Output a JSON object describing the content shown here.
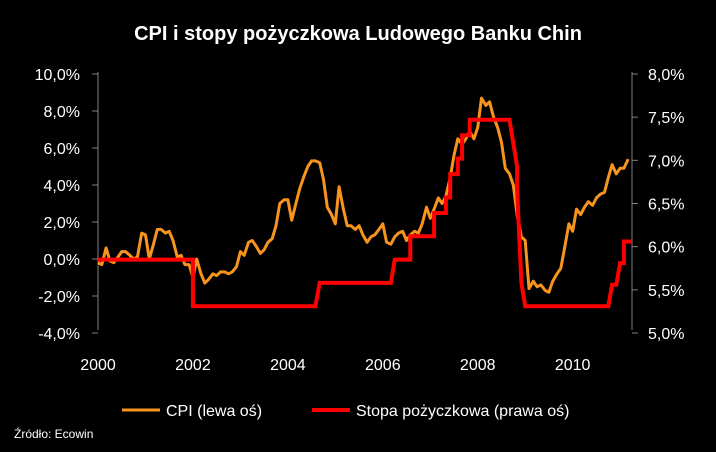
{
  "chart_data": {
    "type": "line",
    "title": "CPI i stopy pożyczkowa Ludowego Banku Chin",
    "source": "Źródło: Ecowin",
    "x_ticks": [
      "2000",
      "2002",
      "2004",
      "2006",
      "2008",
      "2010"
    ],
    "xlim": [
      2000,
      2011.25
    ],
    "y_left": {
      "ticks": [
        "-4,0%",
        "-2,0%",
        "0,0%",
        "2,0%",
        "4,0%",
        "6,0%",
        "8,0%",
        "10,0%"
      ],
      "ylim": [
        -4,
        10
      ]
    },
    "y_right": {
      "ticks": [
        "5,0%",
        "5,5%",
        "6,0%",
        "6,5%",
        "7,0%",
        "7,5%",
        "8,0%"
      ],
      "ylim": [
        5,
        8
      ]
    },
    "legend_position": "bottom",
    "series": [
      {
        "name": "CPI (lewa oś)",
        "axis": "left",
        "color": "#F7941D",
        "points": [
          [
            2000.0,
            -0.2
          ],
          [
            2000.08,
            -0.3
          ],
          [
            2000.17,
            0.6
          ],
          [
            2000.25,
            -0.1
          ],
          [
            2000.33,
            -0.2
          ],
          [
            2000.42,
            0.1
          ],
          [
            2000.5,
            0.4
          ],
          [
            2000.58,
            0.4
          ],
          [
            2000.67,
            0.2
          ],
          [
            2000.75,
            0.0
          ],
          [
            2000.83,
            0.1
          ],
          [
            2000.92,
            1.4
          ],
          [
            2001.0,
            1.3
          ],
          [
            2001.08,
            0.0
          ],
          [
            2001.17,
            0.8
          ],
          [
            2001.25,
            1.6
          ],
          [
            2001.33,
            1.6
          ],
          [
            2001.42,
            1.4
          ],
          [
            2001.5,
            1.5
          ],
          [
            2001.58,
            1.0
          ],
          [
            2001.67,
            0.1
          ],
          [
            2001.75,
            0.2
          ],
          [
            2001.83,
            -0.3
          ],
          [
            2001.92,
            -0.3
          ],
          [
            2002.0,
            -1.0
          ],
          [
            2002.08,
            0.0
          ],
          [
            2002.17,
            -0.8
          ],
          [
            2002.25,
            -1.3
          ],
          [
            2002.33,
            -1.1
          ],
          [
            2002.42,
            -0.8
          ],
          [
            2002.5,
            -0.9
          ],
          [
            2002.58,
            -0.7
          ],
          [
            2002.67,
            -0.7
          ],
          [
            2002.75,
            -0.8
          ],
          [
            2002.83,
            -0.7
          ],
          [
            2002.92,
            -0.4
          ],
          [
            2003.0,
            0.4
          ],
          [
            2003.08,
            0.2
          ],
          [
            2003.17,
            0.9
          ],
          [
            2003.25,
            1.0
          ],
          [
            2003.33,
            0.7
          ],
          [
            2003.42,
            0.3
          ],
          [
            2003.5,
            0.5
          ],
          [
            2003.58,
            0.9
          ],
          [
            2003.67,
            1.1
          ],
          [
            2003.75,
            1.8
          ],
          [
            2003.83,
            3.0
          ],
          [
            2003.92,
            3.2
          ],
          [
            2004.0,
            3.2
          ],
          [
            2004.08,
            2.1
          ],
          [
            2004.17,
            3.0
          ],
          [
            2004.25,
            3.8
          ],
          [
            2004.33,
            4.4
          ],
          [
            2004.42,
            5.0
          ],
          [
            2004.5,
            5.3
          ],
          [
            2004.58,
            5.3
          ],
          [
            2004.67,
            5.2
          ],
          [
            2004.75,
            4.3
          ],
          [
            2004.83,
            2.8
          ],
          [
            2004.92,
            2.4
          ],
          [
            2005.0,
            1.9
          ],
          [
            2005.08,
            3.9
          ],
          [
            2005.17,
            2.7
          ],
          [
            2005.25,
            1.8
          ],
          [
            2005.33,
            1.8
          ],
          [
            2005.42,
            1.6
          ],
          [
            2005.5,
            1.8
          ],
          [
            2005.58,
            1.3
          ],
          [
            2005.67,
            0.9
          ],
          [
            2005.75,
            1.2
          ],
          [
            2005.83,
            1.3
          ],
          [
            2005.92,
            1.6
          ],
          [
            2006.0,
            1.9
          ],
          [
            2006.08,
            0.9
          ],
          [
            2006.17,
            0.8
          ],
          [
            2006.25,
            1.2
          ],
          [
            2006.33,
            1.4
          ],
          [
            2006.42,
            1.5
          ],
          [
            2006.5,
            1.0
          ],
          [
            2006.58,
            1.3
          ],
          [
            2006.67,
            1.5
          ],
          [
            2006.75,
            1.4
          ],
          [
            2006.83,
            1.9
          ],
          [
            2006.92,
            2.8
          ],
          [
            2007.0,
            2.2
          ],
          [
            2007.08,
            2.7
          ],
          [
            2007.17,
            3.3
          ],
          [
            2007.25,
            3.0
          ],
          [
            2007.33,
            3.4
          ],
          [
            2007.42,
            4.4
          ],
          [
            2007.5,
            5.6
          ],
          [
            2007.58,
            6.5
          ],
          [
            2007.67,
            6.2
          ],
          [
            2007.75,
            6.5
          ],
          [
            2007.83,
            6.9
          ],
          [
            2007.92,
            6.5
          ],
          [
            2008.0,
            7.1
          ],
          [
            2008.08,
            8.7
          ],
          [
            2008.17,
            8.3
          ],
          [
            2008.25,
            8.5
          ],
          [
            2008.33,
            7.7
          ],
          [
            2008.42,
            7.1
          ],
          [
            2008.5,
            6.3
          ],
          [
            2008.58,
            4.9
          ],
          [
            2008.67,
            4.6
          ],
          [
            2008.75,
            4.0
          ],
          [
            2008.83,
            2.4
          ],
          [
            2008.92,
            1.2
          ],
          [
            2009.0,
            1.0
          ],
          [
            2009.08,
            -1.6
          ],
          [
            2009.17,
            -1.2
          ],
          [
            2009.25,
            -1.5
          ],
          [
            2009.33,
            -1.4
          ],
          [
            2009.42,
            -1.7
          ],
          [
            2009.5,
            -1.8
          ],
          [
            2009.58,
            -1.2
          ],
          [
            2009.67,
            -0.8
          ],
          [
            2009.75,
            -0.5
          ],
          [
            2009.83,
            0.6
          ],
          [
            2009.92,
            1.9
          ],
          [
            2010.0,
            1.5
          ],
          [
            2010.08,
            2.7
          ],
          [
            2010.17,
            2.4
          ],
          [
            2010.25,
            2.8
          ],
          [
            2010.33,
            3.1
          ],
          [
            2010.42,
            2.9
          ],
          [
            2010.5,
            3.3
          ],
          [
            2010.58,
            3.5
          ],
          [
            2010.67,
            3.6
          ],
          [
            2010.75,
            4.4
          ],
          [
            2010.83,
            5.1
          ],
          [
            2010.92,
            4.6
          ],
          [
            2011.0,
            4.9
          ],
          [
            2011.08,
            4.9
          ],
          [
            2011.17,
            5.4
          ]
        ]
      },
      {
        "name": "Stopa pożyczkowa (prawa oś)",
        "axis": "right",
        "color": "#FF0000",
        "points": [
          [
            2000.0,
            5.85
          ],
          [
            2002.0,
            5.85
          ],
          [
            2002.0,
            5.31
          ],
          [
            2004.58,
            5.31
          ],
          [
            2004.67,
            5.58
          ],
          [
            2006.17,
            5.58
          ],
          [
            2006.25,
            5.85
          ],
          [
            2006.58,
            5.85
          ],
          [
            2006.58,
            6.12
          ],
          [
            2007.08,
            6.12
          ],
          [
            2007.08,
            6.39
          ],
          [
            2007.33,
            6.39
          ],
          [
            2007.33,
            6.57
          ],
          [
            2007.42,
            6.57
          ],
          [
            2007.42,
            6.84
          ],
          [
            2007.58,
            6.84
          ],
          [
            2007.58,
            7.02
          ],
          [
            2007.67,
            7.02
          ],
          [
            2007.67,
            7.29
          ],
          [
            2007.83,
            7.29
          ],
          [
            2007.83,
            7.47
          ],
          [
            2008.67,
            7.47
          ],
          [
            2008.75,
            7.2
          ],
          [
            2008.83,
            6.93
          ],
          [
            2008.83,
            6.66
          ],
          [
            2008.92,
            5.58
          ],
          [
            2009.0,
            5.31
          ],
          [
            2010.75,
            5.31
          ],
          [
            2010.83,
            5.56
          ],
          [
            2010.92,
            5.56
          ],
          [
            2011.0,
            5.81
          ],
          [
            2011.08,
            5.81
          ],
          [
            2011.08,
            6.06
          ],
          [
            2011.25,
            6.06
          ]
        ]
      }
    ]
  }
}
